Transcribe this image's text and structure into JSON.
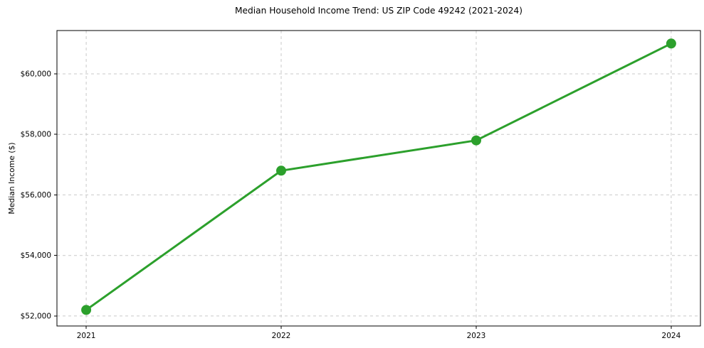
{
  "chart_data": {
    "type": "line",
    "title": "Median Household Income Trend: US ZIP Code 49242 (2021-2024)",
    "xlabel": "",
    "ylabel": "Median Income ($)",
    "x": [
      2021,
      2022,
      2023,
      2024
    ],
    "x_tick_labels": [
      "2021",
      "2022",
      "2023",
      "2024"
    ],
    "series": [
      {
        "values": [
          52200,
          56800,
          57800,
          61000
        ],
        "color": "#2ca02c"
      }
    ],
    "y_ticks": [
      52000,
      54000,
      56000,
      58000,
      60000
    ],
    "y_tick_labels": [
      "$52,000",
      "$54,000",
      "$56,000",
      "$58,000",
      "$60,000"
    ],
    "xlim": [
      2020.85,
      2024.15
    ],
    "ylim": [
      51670,
      61430
    ],
    "grid": true,
    "legend": "none",
    "colors": {
      "line": "#2ca02c",
      "marker": "#2ca02c",
      "grid": "#c9c9c9",
      "spine": "#000000",
      "text": "#000000",
      "background": "#ffffff"
    }
  }
}
